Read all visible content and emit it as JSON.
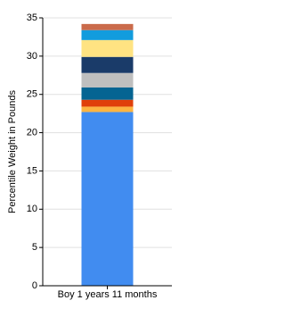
{
  "chart_data": {
    "type": "stacked-bar",
    "y_label": "Percentile Weight in Pounds",
    "categories": [
      "Boy 1 years 11 months"
    ],
    "series": [
      {
        "color": "#418cf0",
        "values": [
          22.7
        ]
      },
      {
        "color": "#fcb441",
        "values": [
          0.7
        ]
      },
      {
        "color": "#e0400a",
        "values": [
          0.9
        ]
      },
      {
        "color": "#056492",
        "values": [
          1.6
        ]
      },
      {
        "color": "#bfbfbf",
        "values": [
          1.9
        ]
      },
      {
        "color": "#1a3b69",
        "values": [
          2.1
        ]
      },
      {
        "color": "#ffe382",
        "values": [
          2.2
        ]
      },
      {
        "color": "#129cdd",
        "values": [
          1.3
        ]
      },
      {
        "color": "#ca6b4b",
        "values": [
          0.8
        ]
      }
    ],
    "ylim": [
      0,
      35
    ],
    "yticks": [
      0,
      5,
      10,
      15,
      20,
      25,
      30,
      35
    ],
    "grid": true
  }
}
